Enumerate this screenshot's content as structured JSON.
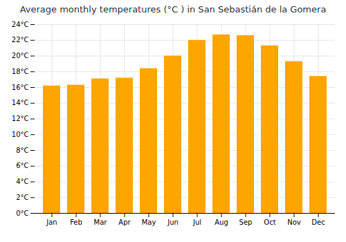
{
  "chart_data": {
    "type": "bar",
    "title": "Average monthly temperatures (°C ) in San Sebastián de la Gomera",
    "categories": [
      "Jan",
      "Feb",
      "Mar",
      "Apr",
      "May",
      "Jun",
      "Jul",
      "Aug",
      "Sep",
      "Oct",
      "Nov",
      "Dec"
    ],
    "values": [
      16.2,
      16.3,
      17.1,
      17.2,
      18.4,
      20.0,
      22.0,
      22.7,
      22.6,
      21.3,
      19.3,
      17.4
    ],
    "color": "#FFA500",
    "ylim": [
      0,
      24
    ],
    "yticks": [
      {
        "value": 0,
        "label": "0°C"
      },
      {
        "value": 2,
        "label": "2°C"
      },
      {
        "value": 4,
        "label": "4°C"
      },
      {
        "value": 6,
        "label": "6°C"
      },
      {
        "value": 8,
        "label": "8°C"
      },
      {
        "value": 10,
        "label": "10°C"
      },
      {
        "value": 12,
        "label": "12°C"
      },
      {
        "value": 14,
        "label": "14°C"
      },
      {
        "value": 16,
        "label": "16°C"
      },
      {
        "value": 18,
        "label": "18°C"
      },
      {
        "value": 20,
        "label": "20°C"
      },
      {
        "value": 22,
        "label": "22°C"
      },
      {
        "value": 24,
        "label": "24°C"
      }
    ],
    "grid": true
  }
}
